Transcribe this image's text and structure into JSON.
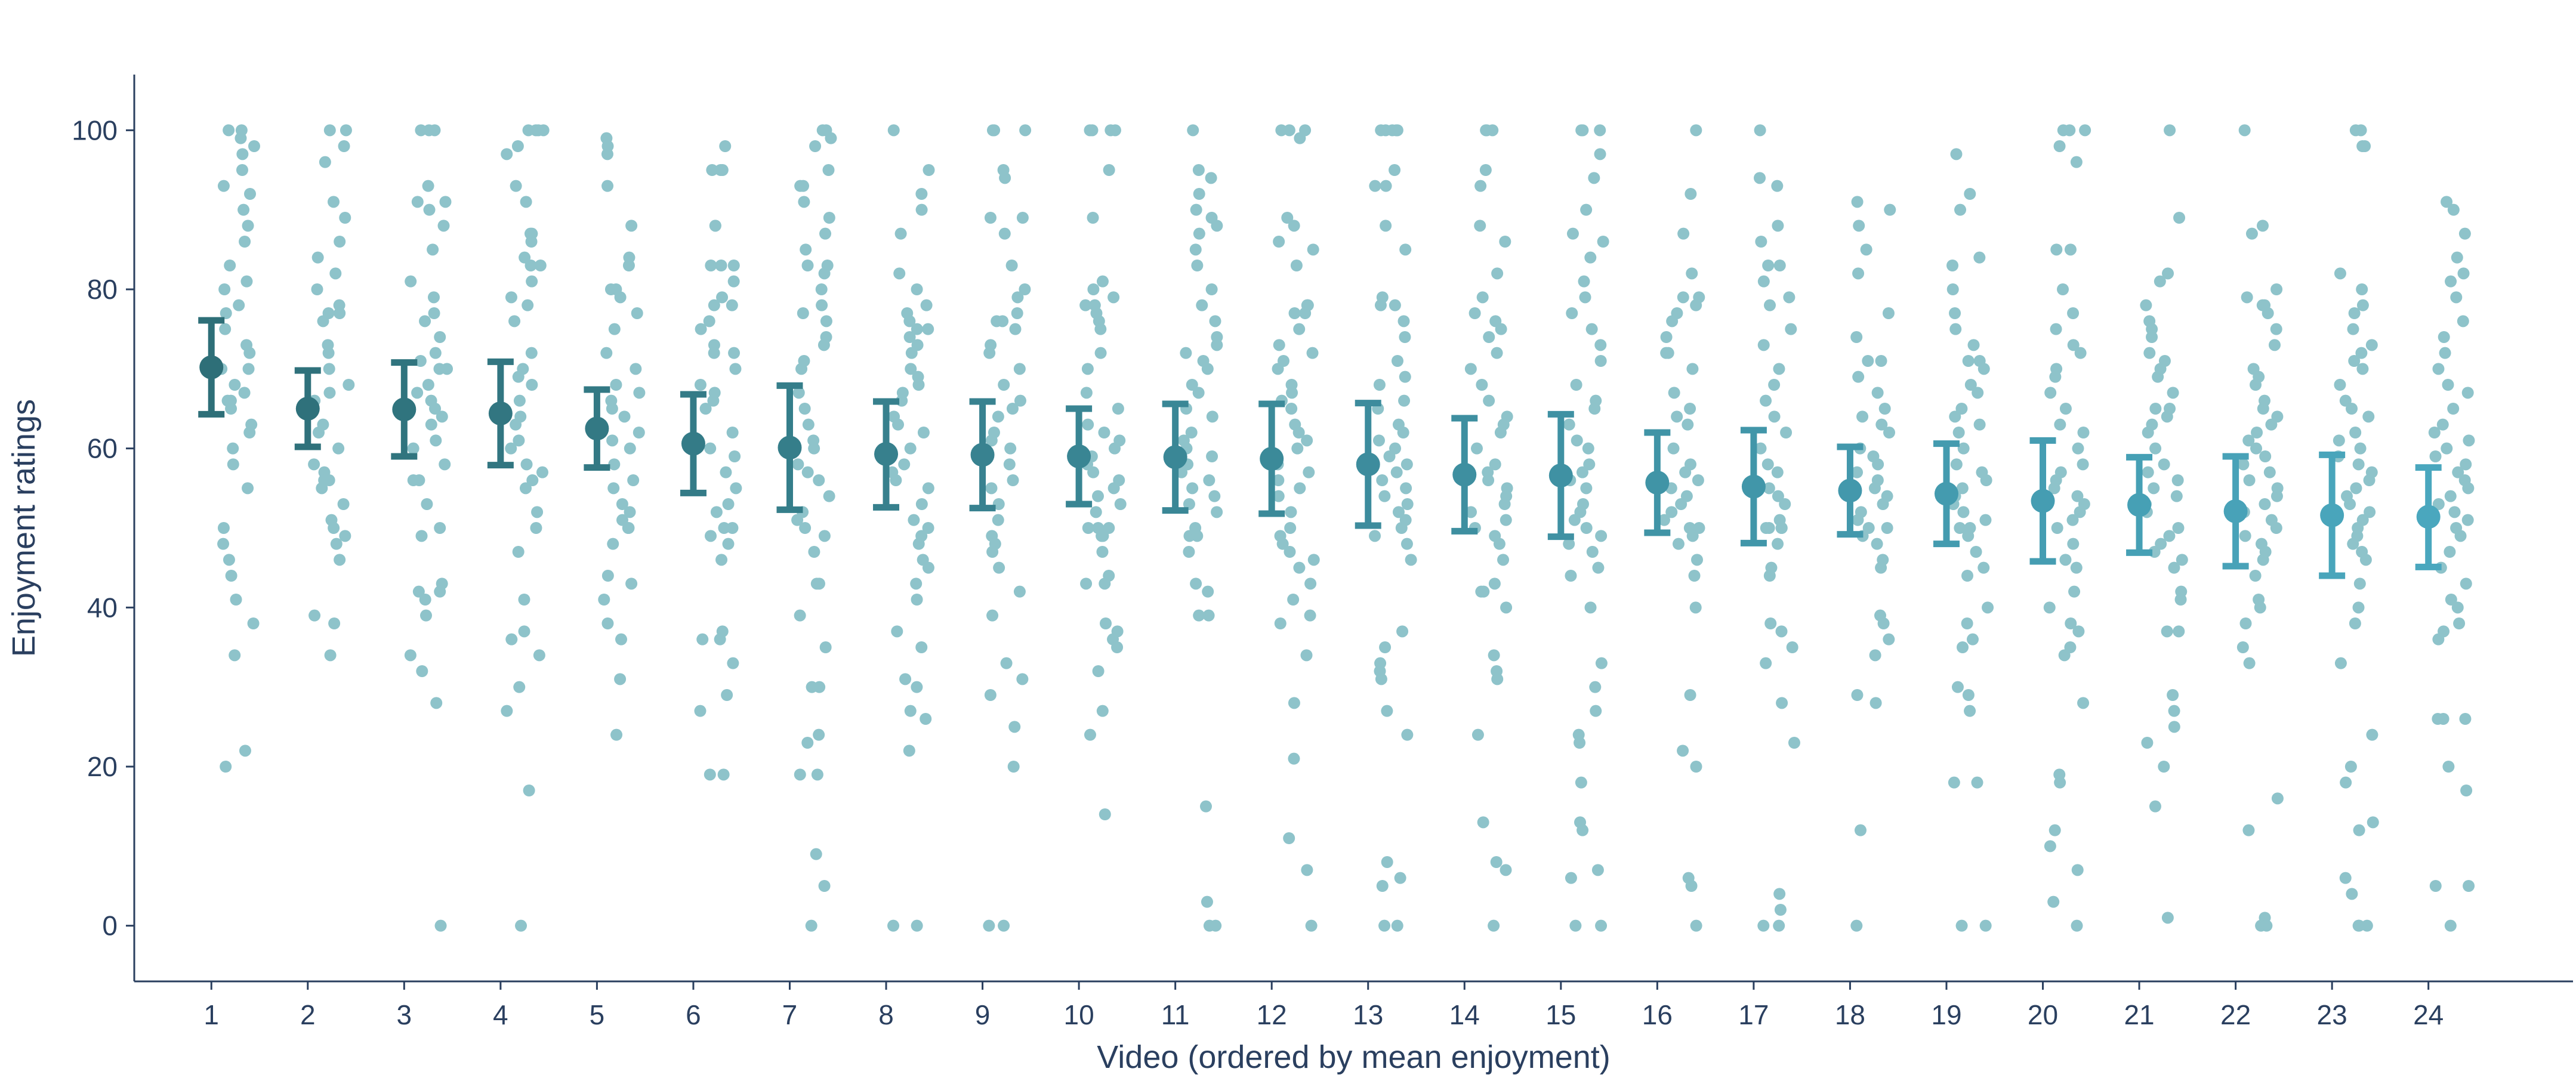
{
  "chart_data": {
    "type": "scatter",
    "title": "",
    "xlabel": "Video (ordered by mean enjoyment)",
    "ylabel": "Enjoyment ratings",
    "ylim": [
      -7,
      107
    ],
    "xlim": [
      0.2,
      25.5
    ],
    "yticks": [
      0,
      20,
      40,
      60,
      80,
      100
    ],
    "categories": [
      "1",
      "2",
      "3",
      "4",
      "5",
      "6",
      "7",
      "8",
      "9",
      "10",
      "11",
      "12",
      "13",
      "14",
      "15",
      "16",
      "17",
      "18",
      "19",
      "20",
      "21",
      "22",
      "23",
      "24"
    ],
    "grid": false,
    "legend": "none",
    "colors": {
      "mean_start": "#2e6f78",
      "mean_end": "#4aa7be",
      "jitter_points": "#8ec3ca",
      "axis": "#2a3f5f"
    },
    "means": [
      70.2,
      65.0,
      64.9,
      64.4,
      62.5,
      60.6,
      60.1,
      59.3,
      59.2,
      59.0,
      58.9,
      58.7,
      58.0,
      56.7,
      56.6,
      55.7,
      55.2,
      54.7,
      54.3,
      53.4,
      52.9,
      52.1,
      51.6,
      51.4
    ],
    "ci_low": [
      64.3,
      60.2,
      59.0,
      57.9,
      57.6,
      54.4,
      52.3,
      52.6,
      52.5,
      53.0,
      52.2,
      51.8,
      50.3,
      49.6,
      48.9,
      49.4,
      48.1,
      49.2,
      48.0,
      45.8,
      46.9,
      45.2,
      44.0,
      45.1
    ],
    "ci_high": [
      76.1,
      69.8,
      70.8,
      70.9,
      67.4,
      66.8,
      67.9,
      65.9,
      65.9,
      65.0,
      65.6,
      65.6,
      65.7,
      63.8,
      64.3,
      62.0,
      62.3,
      60.2,
      60.6,
      61.0,
      58.9,
      59.0,
      59.2,
      57.6
    ],
    "ratings": [
      [
        100,
        100,
        99,
        98,
        97,
        95,
        93,
        92,
        90,
        88,
        86,
        83,
        81,
        80,
        78,
        77,
        75,
        73,
        72,
        70,
        70,
        68,
        67,
        66,
        66,
        65,
        63,
        62,
        60,
        58,
        55,
        50,
        48,
        46,
        44,
        41,
        38,
        34,
        22,
        20
      ],
      [
        100,
        100,
        98,
        96,
        91,
        89,
        86,
        84,
        82,
        80,
        78,
        77,
        77,
        76,
        73,
        72,
        70,
        68,
        67,
        66,
        63,
        62,
        60,
        58,
        57,
        56,
        56,
        55,
        53,
        51,
        50,
        49,
        48,
        46,
        39,
        38,
        34
      ],
      [
        100,
        100,
        100,
        93,
        91,
        91,
        90,
        88,
        85,
        81,
        79,
        77,
        76,
        74,
        72,
        71,
        70,
        70,
        68,
        67,
        66,
        65,
        64,
        63,
        61,
        60,
        58,
        56,
        56,
        53,
        50,
        49,
        43,
        42,
        42,
        41,
        39,
        34,
        32,
        28,
        0
      ],
      [
        100,
        100,
        100,
        100,
        98,
        97,
        93,
        91,
        87,
        87,
        86,
        84,
        83,
        83,
        81,
        79,
        78,
        76,
        72,
        70,
        69,
        68,
        66,
        64,
        63,
        61,
        60,
        58,
        57,
        56,
        55,
        52,
        50,
        47,
        41,
        37,
        36,
        34,
        30,
        27,
        17,
        0
      ],
      [
        99,
        98,
        97,
        93,
        88,
        84,
        83,
        80,
        80,
        79,
        77,
        75,
        72,
        70,
        68,
        67,
        66,
        65,
        64,
        62,
        61,
        60,
        58,
        56,
        55,
        53,
        52,
        51,
        50,
        50,
        48,
        44,
        43,
        41,
        38,
        36,
        31,
        24
      ],
      [
        98,
        95,
        95,
        95,
        88,
        88,
        83,
        83,
        83,
        81,
        79,
        78,
        78,
        76,
        75,
        73,
        72,
        72,
        70,
        68,
        67,
        66,
        65,
        62,
        60,
        59,
        57,
        55,
        53,
        52,
        50,
        50,
        49,
        48,
        46,
        37,
        36,
        36,
        33,
        29,
        27,
        19,
        19
      ],
      [
        100,
        100,
        99,
        98,
        95,
        93,
        93,
        91,
        89,
        87,
        85,
        83,
        83,
        82,
        80,
        78,
        77,
        76,
        74,
        73,
        71,
        70,
        67,
        65,
        63,
        61,
        60,
        58,
        57,
        56,
        54,
        52,
        51,
        50,
        49,
        47,
        43,
        43,
        39,
        35,
        30,
        30,
        24,
        23,
        19,
        19,
        9,
        5,
        0
      ],
      [
        100,
        95,
        92,
        90,
        87,
        82,
        80,
        78,
        77,
        76,
        75,
        75,
        74,
        73,
        72,
        70,
        69,
        68,
        67,
        66,
        64,
        63,
        62,
        60,
        58,
        57,
        56,
        55,
        53,
        51,
        50,
        49,
        48,
        46,
        45,
        43,
        41,
        37,
        35,
        31,
        30,
        27,
        26,
        22,
        0,
        0
      ],
      [
        100,
        100,
        100,
        95,
        94,
        89,
        89,
        87,
        83,
        80,
        79,
        77,
        76,
        76,
        75,
        73,
        72,
        70,
        68,
        66,
        65,
        64,
        62,
        61,
        60,
        58,
        56,
        55,
        53,
        51,
        49,
        48,
        47,
        45,
        42,
        39,
        33,
        31,
        29,
        25,
        20,
        0,
        0
      ],
      [
        100,
        100,
        100,
        100,
        95,
        89,
        81,
        80,
        79,
        78,
        78,
        77,
        76,
        75,
        72,
        70,
        67,
        65,
        63,
        62,
        61,
        60,
        59,
        58,
        57,
        56,
        55,
        54,
        53,
        52,
        50,
        50,
        50,
        49,
        49,
        47,
        44,
        43,
        43,
        38,
        37,
        36,
        35,
        32,
        27,
        24,
        14
      ],
      [
        100,
        95,
        94,
        92,
        90,
        89,
        88,
        87,
        85,
        83,
        80,
        78,
        76,
        74,
        73,
        72,
        71,
        70,
        68,
        67,
        65,
        64,
        62,
        61,
        60,
        59,
        58,
        57,
        56,
        55,
        54,
        53,
        52,
        50,
        49,
        49,
        47,
        43,
        42,
        39,
        39,
        15,
        3,
        0,
        0
      ],
      [
        100,
        100,
        100,
        99,
        89,
        88,
        86,
        85,
        83,
        78,
        78,
        77,
        77,
        75,
        73,
        72,
        71,
        70,
        68,
        67,
        66,
        65,
        63,
        62,
        61,
        60,
        58,
        57,
        56,
        55,
        54,
        52,
        50,
        49,
        48,
        47,
        46,
        45,
        43,
        41,
        39,
        38,
        34,
        28,
        21,
        11,
        7,
        0
      ],
      [
        100,
        100,
        100,
        100,
        100,
        95,
        93,
        93,
        88,
        85,
        79,
        78,
        78,
        76,
        74,
        71,
        69,
        68,
        66,
        65,
        63,
        62,
        61,
        60,
        59,
        58,
        57,
        56,
        55,
        54,
        53,
        52,
        51,
        50,
        49,
        48,
        46,
        37,
        35,
        33,
        32,
        31,
        27,
        24,
        8,
        6,
        5,
        0,
        0
      ],
      [
        100,
        100,
        100,
        95,
        93,
        88,
        86,
        82,
        79,
        77,
        76,
        75,
        74,
        72,
        70,
        68,
        66,
        64,
        63,
        62,
        60,
        58,
        57,
        56,
        55,
        54,
        53,
        52,
        51,
        50,
        49,
        48,
        46,
        43,
        42,
        42,
        40,
        34,
        32,
        31,
        24,
        13,
        8,
        7,
        0
      ],
      [
        100,
        100,
        100,
        97,
        94,
        90,
        87,
        86,
        84,
        81,
        79,
        77,
        75,
        73,
        71,
        68,
        66,
        65,
        63,
        61,
        60,
        58,
        57,
        56,
        55,
        53,
        52,
        51,
        50,
        49,
        48,
        47,
        45,
        44,
        40,
        33,
        30,
        27,
        24,
        23,
        18,
        13,
        12,
        7,
        6,
        0,
        0
      ],
      [
        100,
        92,
        87,
        82,
        79,
        79,
        78,
        77,
        76,
        74,
        72,
        72,
        70,
        67,
        65,
        64,
        63,
        60,
        58,
        57,
        56,
        55,
        54,
        53,
        52,
        51,
        50,
        50,
        49,
        48,
        46,
        44,
        40,
        29,
        22,
        20,
        6,
        5,
        0
      ],
      [
        100,
        94,
        93,
        88,
        86,
        83,
        83,
        81,
        79,
        78,
        75,
        73,
        70,
        68,
        66,
        64,
        62,
        60,
        58,
        57,
        55,
        54,
        53,
        51,
        50,
        50,
        50,
        50,
        48,
        45,
        44,
        38,
        37,
        35,
        33,
        28,
        23,
        4,
        2,
        0,
        0
      ],
      [
        91,
        90,
        88,
        85,
        82,
        77,
        74,
        71,
        71,
        69,
        67,
        65,
        64,
        63,
        62,
        60,
        59,
        58,
        57,
        56,
        55,
        54,
        53,
        52,
        51,
        50,
        50,
        49,
        48,
        46,
        45,
        39,
        38,
        36,
        34,
        29,
        28,
        12,
        0
      ],
      [
        97,
        92,
        90,
        84,
        83,
        80,
        77,
        75,
        73,
        71,
        71,
        70,
        68,
        67,
        65,
        64,
        63,
        62,
        60,
        58,
        57,
        56,
        55,
        54,
        53,
        52,
        51,
        50,
        50,
        49,
        47,
        45,
        44,
        40,
        38,
        36,
        35,
        30,
        29,
        27,
        18,
        18,
        0,
        0
      ],
      [
        100,
        100,
        100,
        98,
        96,
        85,
        85,
        80,
        77,
        75,
        73,
        72,
        70,
        69,
        67,
        65,
        63,
        62,
        60,
        58,
        57,
        56,
        55,
        54,
        53,
        52,
        51,
        50,
        48,
        46,
        45,
        42,
        40,
        38,
        37,
        35,
        34,
        28,
        19,
        18,
        12,
        10,
        7,
        3,
        0
      ],
      [
        100,
        89,
        82,
        81,
        78,
        76,
        75,
        74,
        72,
        71,
        70,
        69,
        67,
        65,
        65,
        64,
        63,
        62,
        60,
        58,
        57,
        56,
        55,
        54,
        53,
        52,
        50,
        49,
        48,
        47,
        46,
        45,
        42,
        41,
        37,
        37,
        29,
        27,
        25,
        23,
        20,
        15,
        1
      ],
      [
        100,
        88,
        87,
        80,
        79,
        78,
        78,
        77,
        75,
        73,
        70,
        69,
        68,
        66,
        65,
        64,
        63,
        62,
        61,
        60,
        59,
        58,
        57,
        56,
        55,
        54,
        53,
        52,
        51,
        50,
        49,
        48,
        47,
        46,
        44,
        41,
        40,
        38,
        35,
        33,
        16,
        12,
        1,
        0,
        0
      ],
      [
        100,
        100,
        98,
        98,
        82,
        80,
        78,
        77,
        75,
        73,
        72,
        71,
        70,
        68,
        66,
        65,
        64,
        62,
        61,
        60,
        59,
        58,
        57,
        56,
        55,
        54,
        53,
        52,
        51,
        50,
        49,
        48,
        47,
        46,
        43,
        40,
        38,
        33,
        24,
        20,
        18,
        13,
        12,
        6,
        4,
        0,
        0,
        0
      ],
      [
        91,
        90,
        87,
        84,
        82,
        81,
        79,
        76,
        74,
        72,
        70,
        68,
        67,
        65,
        63,
        62,
        61,
        60,
        59,
        58,
        57,
        56,
        55,
        54,
        53,
        52,
        51,
        50,
        49,
        47,
        45,
        43,
        41,
        40,
        38,
        37,
        36,
        26,
        26,
        26,
        20,
        17,
        5,
        5,
        0
      ]
    ]
  }
}
